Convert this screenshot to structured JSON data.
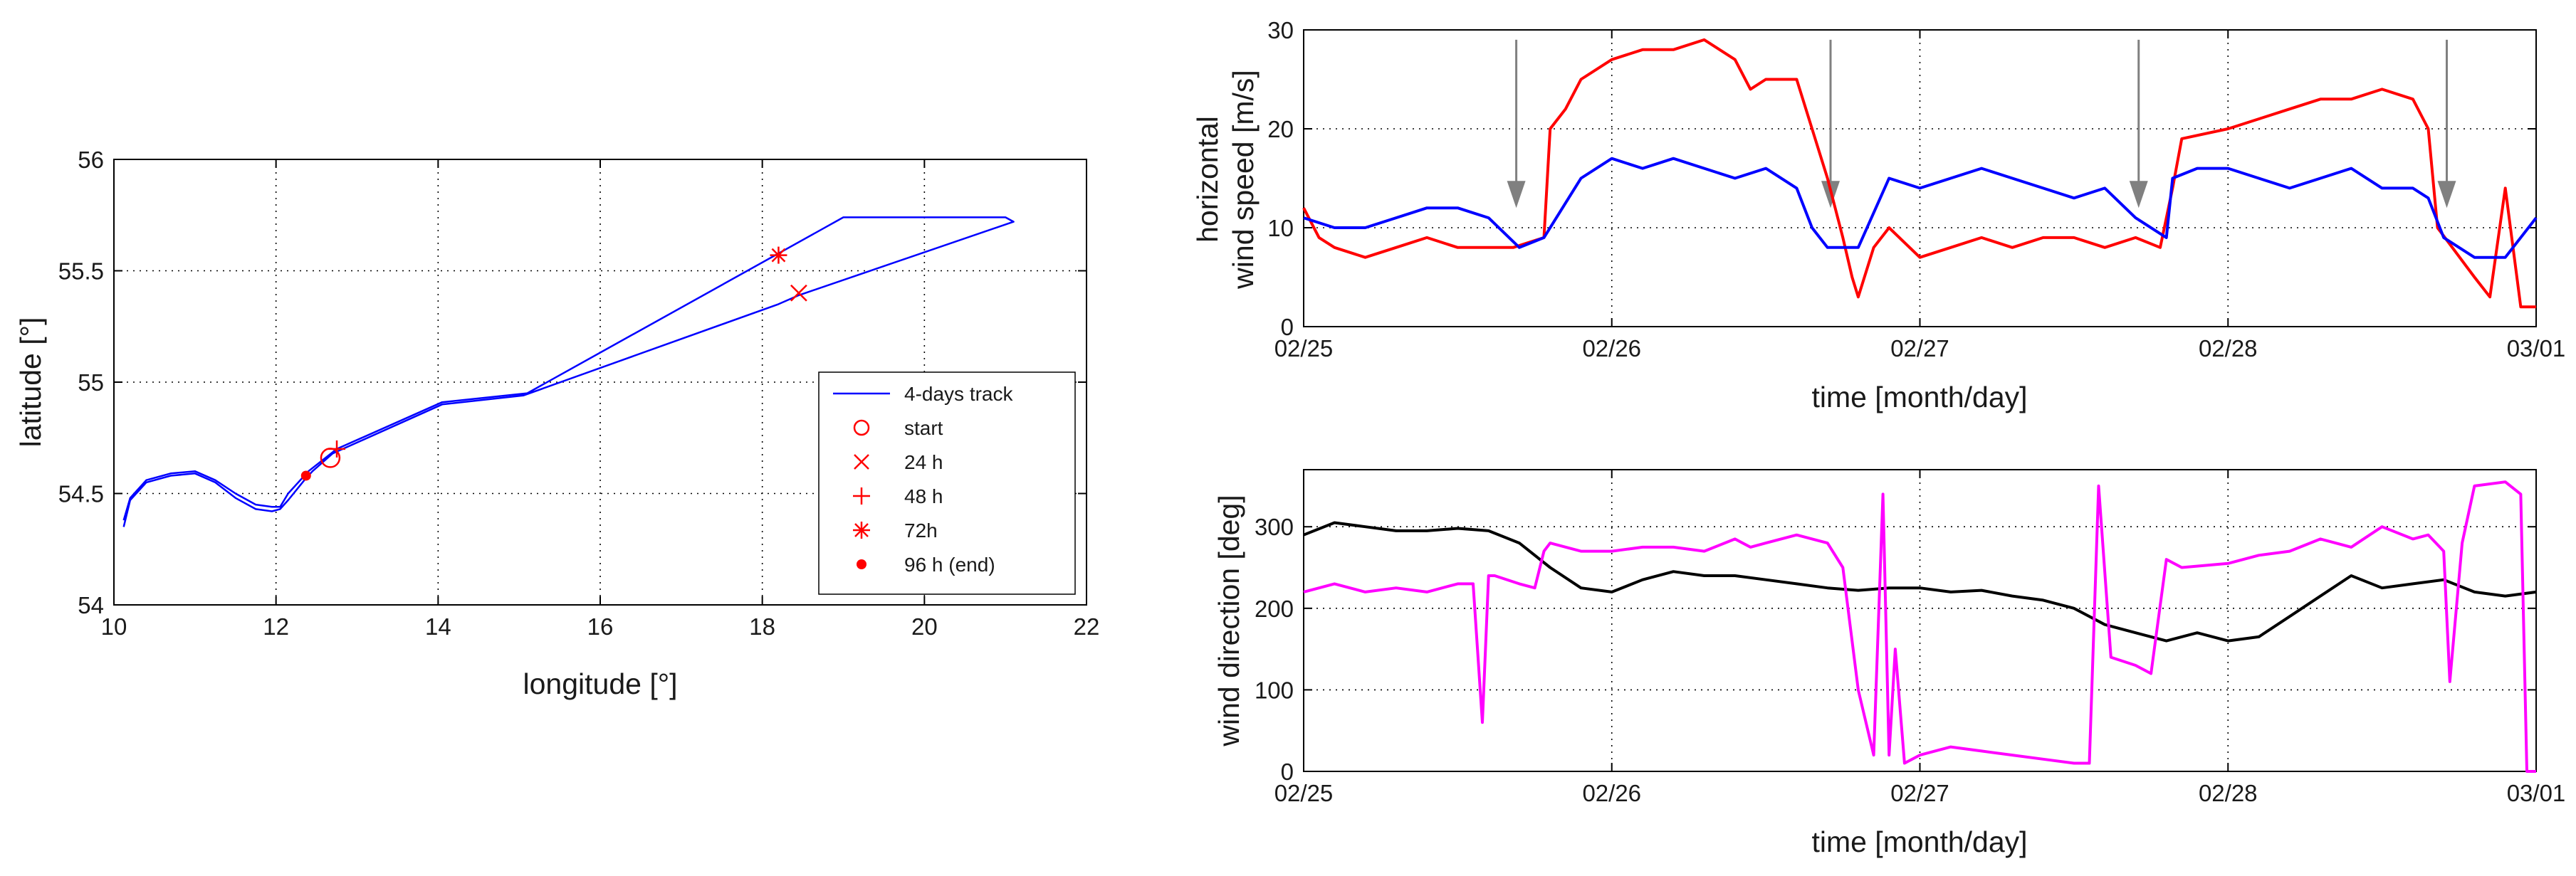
{
  "chart_data": [
    {
      "type": "line",
      "xlabel": "longitude [°]",
      "ylabel": "latitude [°]",
      "xlim": [
        10,
        22
      ],
      "ylim": [
        54,
        56
      ],
      "xticks": [
        10,
        12,
        14,
        16,
        18,
        20,
        22
      ],
      "yticks": [
        54,
        54.5,
        55,
        55.5,
        56
      ],
      "xtick_labels": [
        "10",
        "12",
        "14",
        "16",
        "18",
        "20",
        "22"
      ],
      "ytick_labels": [
        "54",
        "54.5",
        "55",
        "55.5",
        "56"
      ],
      "grid": true,
      "series": [
        {
          "name": "4-days track",
          "color": "#0000ff",
          "x": [
            10.12,
            10.2,
            10.4,
            10.7,
            11.0,
            11.25,
            11.5,
            11.75,
            11.95,
            12.05,
            12.15,
            12.35,
            12.45,
            12.7,
            14.05,
            15.05,
            18.2,
            18.45,
            21.1,
            21.0,
            19.0,
            15.1,
            14.05,
            12.75,
            12.4,
            12.15,
            12.05,
            11.95,
            11.75,
            11.5,
            11.25,
            11.0,
            10.7,
            10.4,
            10.2,
            10.12
          ],
          "y": [
            54.35,
            54.47,
            54.55,
            54.58,
            54.59,
            54.55,
            54.48,
            54.43,
            54.42,
            54.43,
            54.47,
            54.56,
            54.6,
            54.68,
            54.9,
            54.94,
            55.35,
            55.39,
            55.72,
            55.74,
            55.74,
            54.95,
            54.91,
            54.7,
            54.6,
            54.5,
            54.44,
            54.44,
            54.45,
            54.5,
            54.56,
            54.6,
            54.59,
            54.56,
            54.48,
            54.38
          ]
        }
      ],
      "markers": [
        {
          "label": "start",
          "symbol": "circle",
          "x": 12.67,
          "y": 54.66
        },
        {
          "label": "24 h",
          "symbol": "x",
          "x": 18.45,
          "y": 55.4
        },
        {
          "label": "48 h",
          "symbol": "plus",
          "x": 12.75,
          "y": 54.7
        },
        {
          "label": "72h",
          "symbol": "asterisk",
          "x": 18.2,
          "y": 55.57
        },
        {
          "label": "96 h (end)",
          "symbol": "dot",
          "x": 12.37,
          "y": 54.58
        }
      ],
      "marker_color": "#ff0000",
      "legend": {
        "position": "bottom-right",
        "entries": [
          "4-days track",
          "start",
          "24 h",
          "48 h",
          "72h",
          "96 h (end)"
        ]
      }
    },
    {
      "type": "line",
      "xlabel": "time  [month/day]",
      "ylabel_line1": "horizontal",
      "ylabel_line2": "wind speed [m/s]",
      "xlim": [
        0,
        4
      ],
      "ylim": [
        0,
        30
      ],
      "xticks": [
        0,
        1,
        2,
        3,
        4
      ],
      "xtick_labels": [
        "02/25",
        "02/26",
        "02/27",
        "02/28",
        "03/01"
      ],
      "yticks": [
        0,
        10,
        20,
        30
      ],
      "ytick_labels": [
        "0",
        "10",
        "20",
        "30"
      ],
      "grid": true,
      "annotations": [
        {
          "type": "arrow",
          "x": 0.69,
          "y_from": 29,
          "y_to": 12,
          "color": "#808080"
        },
        {
          "type": "arrow",
          "x": 1.71,
          "y_from": 29,
          "y_to": 12,
          "color": "#808080"
        },
        {
          "type": "arrow",
          "x": 2.71,
          "y_from": 29,
          "y_to": 12,
          "color": "#808080"
        },
        {
          "type": "arrow",
          "x": 3.71,
          "y_from": 29,
          "y_to": 12,
          "color": "#808080"
        }
      ],
      "series": [
        {
          "name": "red",
          "color": "#ff0000",
          "x": [
            0,
            0.05,
            0.1,
            0.2,
            0.3,
            0.4,
            0.5,
            0.6,
            0.68,
            0.78,
            0.8,
            0.85,
            0.9,
            1.0,
            1.1,
            1.2,
            1.3,
            1.4,
            1.45,
            1.5,
            1.6,
            1.7,
            1.75,
            1.78,
            1.8,
            1.85,
            1.9,
            2.0,
            2.1,
            2.2,
            2.3,
            2.4,
            2.5,
            2.6,
            2.7,
            2.78,
            2.82,
            2.85,
            3.0,
            3.1,
            3.2,
            3.3,
            3.4,
            3.5,
            3.6,
            3.65,
            3.68,
            3.8,
            3.85,
            3.9,
            3.95,
            4.0
          ],
          "y": [
            12,
            9,
            8,
            7,
            8,
            9,
            8,
            8,
            8,
            9,
            20,
            22,
            25,
            27,
            28,
            28,
            29,
            27,
            24,
            25,
            25,
            15,
            9,
            5,
            3,
            8,
            10,
            7,
            8,
            9,
            8,
            9,
            9,
            8,
            9,
            8,
            14,
            19,
            20,
            21,
            22,
            23,
            23,
            24,
            23,
            20,
            10,
            5,
            3,
            14,
            2,
            2
          ]
        },
        {
          "name": "blue",
          "color": "#0000ff",
          "x": [
            0,
            0.1,
            0.2,
            0.3,
            0.4,
            0.5,
            0.6,
            0.7,
            0.78,
            0.9,
            1.0,
            1.1,
            1.2,
            1.3,
            1.4,
            1.5,
            1.6,
            1.65,
            1.7,
            1.8,
            1.9,
            2.0,
            2.1,
            2.2,
            2.3,
            2.4,
            2.5,
            2.6,
            2.7,
            2.8,
            2.82,
            2.9,
            3.0,
            3.1,
            3.2,
            3.3,
            3.4,
            3.5,
            3.6,
            3.65,
            3.7,
            3.8,
            3.9,
            4.0
          ],
          "y": [
            11,
            10,
            10,
            11,
            12,
            12,
            11,
            8,
            9,
            15,
            17,
            16,
            17,
            16,
            15,
            16,
            14,
            10,
            8,
            8,
            15,
            14,
            15,
            16,
            15,
            14,
            13,
            14,
            11,
            9,
            15,
            16,
            16,
            15,
            14,
            15,
            16,
            14,
            14,
            13,
            9,
            7,
            7,
            11
          ]
        }
      ]
    },
    {
      "type": "line",
      "xlabel": "time  [month/day]",
      "ylabel": "wind direction [deg]",
      "xlim": [
        0,
        4
      ],
      "ylim": [
        0,
        370
      ],
      "xticks": [
        0,
        1,
        2,
        3,
        4
      ],
      "xtick_labels": [
        "02/25",
        "02/26",
        "02/27",
        "02/28",
        "03/01"
      ],
      "yticks": [
        0,
        100,
        200,
        300
      ],
      "ytick_labels": [
        "0",
        "100",
        "200",
        "300"
      ],
      "grid": true,
      "series": [
        {
          "name": "black",
          "color": "#000000",
          "x": [
            0,
            0.1,
            0.2,
            0.3,
            0.4,
            0.5,
            0.6,
            0.7,
            0.8,
            0.9,
            1.0,
            1.1,
            1.2,
            1.3,
            1.4,
            1.5,
            1.6,
            1.7,
            1.8,
            1.9,
            2.0,
            2.1,
            2.2,
            2.3,
            2.4,
            2.5,
            2.6,
            2.7,
            2.8,
            2.9,
            3.0,
            3.1,
            3.2,
            3.3,
            3.4,
            3.5,
            3.6,
            3.7,
            3.8,
            3.9,
            4.0
          ],
          "y": [
            290,
            305,
            300,
            295,
            295,
            298,
            295,
            280,
            250,
            225,
            220,
            235,
            245,
            240,
            240,
            235,
            230,
            225,
            222,
            225,
            225,
            220,
            222,
            215,
            210,
            200,
            180,
            170,
            160,
            170,
            160,
            165,
            190,
            215,
            240,
            225,
            230,
            235,
            220,
            215,
            220
          ]
        },
        {
          "name": "magenta",
          "color": "#ff00ff",
          "x": [
            0,
            0.1,
            0.2,
            0.3,
            0.4,
            0.5,
            0.55,
            0.58,
            0.6,
            0.62,
            0.7,
            0.75,
            0.78,
            0.8,
            0.9,
            1.0,
            1.1,
            1.2,
            1.3,
            1.4,
            1.45,
            1.5,
            1.6,
            1.7,
            1.75,
            1.8,
            1.85,
            1.88,
            1.9,
            1.92,
            1.95,
            2.0,
            2.1,
            2.2,
            2.3,
            2.4,
            2.5,
            2.55,
            2.58,
            2.62,
            2.7,
            2.75,
            2.8,
            2.85,
            3.0,
            3.1,
            3.2,
            3.3,
            3.4,
            3.5,
            3.6,
            3.65,
            3.7,
            3.72,
            3.76,
            3.8,
            3.9,
            3.95,
            3.97,
            4.0
          ],
          "y": [
            220,
            230,
            220,
            225,
            220,
            230,
            230,
            60,
            240,
            240,
            230,
            225,
            270,
            280,
            270,
            270,
            275,
            275,
            270,
            285,
            275,
            280,
            290,
            280,
            250,
            100,
            20,
            340,
            20,
            150,
            10,
            20,
            30,
            25,
            20,
            15,
            10,
            10,
            350,
            140,
            130,
            120,
            260,
            250,
            255,
            265,
            270,
            285,
            275,
            300,
            285,
            290,
            270,
            110,
            280,
            350,
            355,
            340,
            0,
            0
          ]
        }
      ]
    }
  ]
}
